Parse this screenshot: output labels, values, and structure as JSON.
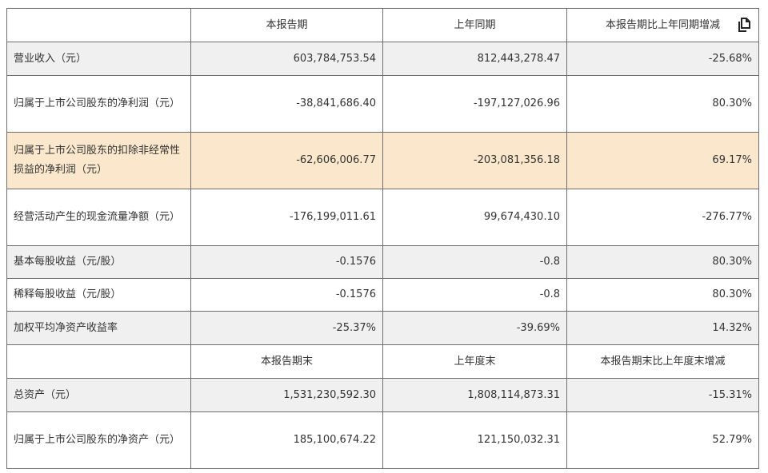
{
  "header1": [
    "",
    "本报告期",
    "上年同期",
    "本报告期比上年同期增减"
  ],
  "header2": [
    "",
    "本报告期末",
    "上年度末",
    "本报告期末比上年度末增减"
  ],
  "rows1": [
    {
      "label": "营业收入（元）",
      "current": "603,784,753.54",
      "previous": "812,443,278.47",
      "change": "-25.68%"
    },
    {
      "label": "归属于上市公司股东的净利润（元）",
      "current": "-38,841,686.40",
      "previous": "-197,127,026.96",
      "change": "80.30%"
    },
    {
      "label": "归属于上市公司股东的扣除非经常性损益的净利润（元）",
      "current": "-62,606,006.77",
      "previous": "-203,081,356.18",
      "change": "69.17%"
    },
    {
      "label": "经营活动产生的现金流量净额（元）",
      "current": "-176,199,011.61",
      "previous": "99,674,430.10",
      "change": "-276.77%"
    },
    {
      "label": "基本每股收益（元/股）",
      "current": "-0.1576",
      "previous": "-0.8",
      "change": "80.30%"
    },
    {
      "label": "稀释每股收益（元/股）",
      "current": "-0.1576",
      "previous": "-0.8",
      "change": "80.30%"
    },
    {
      "label": "加权平均净资产收益率",
      "current": "-25.37%",
      "previous": "-39.69%",
      "change": "14.32%"
    }
  ],
  "rows2": [
    {
      "label": "总资产（元）",
      "current": "1,531,230,592.30",
      "previous": "1,808,114,873.31",
      "change": "-15.31%"
    },
    {
      "label": "归属于上市公司股东的净资产（元）",
      "current": "185,100,674.22",
      "previous": "121,150,032.31",
      "change": "52.79%"
    }
  ],
  "icons": {
    "copy": "copy-icon"
  }
}
